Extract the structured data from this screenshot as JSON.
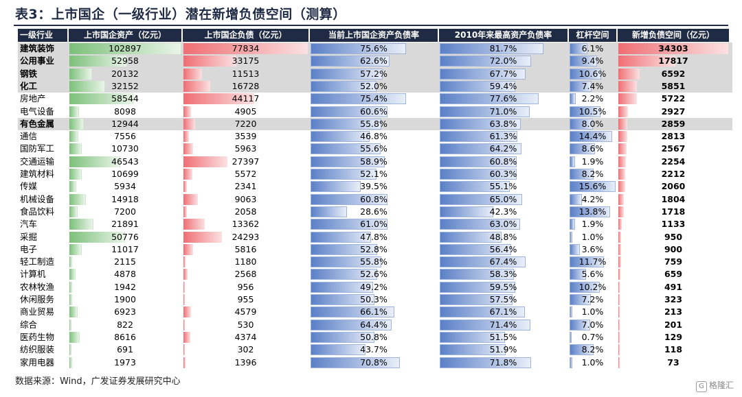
{
  "title": "表3：上市国企（一级行业）潜在新增负债空间（测算）",
  "source": "数据来源：Wind，广发证券发展研究中心",
  "logo_text": "格隆汇",
  "colors": {
    "header_bg": "#1f2a44",
    "highlight_row": "#d9d9d9",
    "green": "#7cc07a",
    "red": "#ef6e73",
    "blue": "#5b80c7"
  },
  "chart_data": {
    "type": "table",
    "columns": [
      "一级行业",
      "上市国企资产（亿元）",
      "上市国企负债（亿元）",
      "当前上市国企资产负债率",
      "2010年来最高资产负债率",
      "杠杆空间",
      "新增负债空间（亿元）"
    ],
    "rows": [
      {
        "industry": "建筑装饰",
        "assets": "102897",
        "liabilities": "77834",
        "current_ratio": "75.6%",
        "max_ratio": "81.7%",
        "leverage_space": "6.1%",
        "new_debt": "34303",
        "highlight": true
      },
      {
        "industry": "公用事业",
        "assets": "52958",
        "liabilities": "33175",
        "current_ratio": "62.6%",
        "max_ratio": "72.0%",
        "leverage_space": "9.4%",
        "new_debt": "17817",
        "highlight": true
      },
      {
        "industry": "钢铁",
        "assets": "20132",
        "liabilities": "11513",
        "current_ratio": "57.2%",
        "max_ratio": "67.7%",
        "leverage_space": "10.6%",
        "new_debt": "6592",
        "highlight": true
      },
      {
        "industry": "化工",
        "assets": "32152",
        "liabilities": "16728",
        "current_ratio": "52.0%",
        "max_ratio": "59.4%",
        "leverage_space": "7.4%",
        "new_debt": "5851",
        "highlight": true
      },
      {
        "industry": "房地产",
        "assets": "58544",
        "liabilities": "44117",
        "current_ratio": "75.4%",
        "max_ratio": "77.6%",
        "leverage_space": "2.2%",
        "new_debt": "5722",
        "highlight": false
      },
      {
        "industry": "电气设备",
        "assets": "8098",
        "liabilities": "4905",
        "current_ratio": "60.6%",
        "max_ratio": "71.0%",
        "leverage_space": "10.5%",
        "new_debt": "2927",
        "highlight": false
      },
      {
        "industry": "有色金属",
        "assets": "12944",
        "liabilities": "7220",
        "current_ratio": "55.8%",
        "max_ratio": "63.8%",
        "leverage_space": "8.0%",
        "new_debt": "2859",
        "highlight": true
      },
      {
        "industry": "通信",
        "assets": "7556",
        "liabilities": "3539",
        "current_ratio": "46.8%",
        "max_ratio": "61.3%",
        "leverage_space": "14.4%",
        "new_debt": "2813",
        "highlight": false
      },
      {
        "industry": "国防军工",
        "assets": "10730",
        "liabilities": "5963",
        "current_ratio": "55.6%",
        "max_ratio": "64.2%",
        "leverage_space": "8.6%",
        "new_debt": "2567",
        "highlight": false
      },
      {
        "industry": "交通运输",
        "assets": "46543",
        "liabilities": "27397",
        "current_ratio": "58.9%",
        "max_ratio": "60.8%",
        "leverage_space": "1.9%",
        "new_debt": "2254",
        "highlight": false
      },
      {
        "industry": "建筑材料",
        "assets": "10699",
        "liabilities": "5572",
        "current_ratio": "52.1%",
        "max_ratio": "60.3%",
        "leverage_space": "8.2%",
        "new_debt": "2212",
        "highlight": false
      },
      {
        "industry": "传媒",
        "assets": "5934",
        "liabilities": "2341",
        "current_ratio": "39.5%",
        "max_ratio": "55.1%",
        "leverage_space": "15.6%",
        "new_debt": "2060",
        "highlight": false
      },
      {
        "industry": "机械设备",
        "assets": "14918",
        "liabilities": "9063",
        "current_ratio": "60.8%",
        "max_ratio": "65.0%",
        "leverage_space": "4.2%",
        "new_debt": "1804",
        "highlight": false
      },
      {
        "industry": "食品饮料",
        "assets": "7200",
        "liabilities": "2058",
        "current_ratio": "28.6%",
        "max_ratio": "42.3%",
        "leverage_space": "13.8%",
        "new_debt": "1718",
        "highlight": false
      },
      {
        "industry": "汽车",
        "assets": "21891",
        "liabilities": "13362",
        "current_ratio": "61.0%",
        "max_ratio": "63.0%",
        "leverage_space": "1.9%",
        "new_debt": "1133",
        "highlight": false
      },
      {
        "industry": "采掘",
        "assets": "50776",
        "liabilities": "24293",
        "current_ratio": "47.8%",
        "max_ratio": "48.8%",
        "leverage_space": "1.0%",
        "new_debt": "950",
        "highlight": false
      },
      {
        "industry": "电子",
        "assets": "11017",
        "liabilities": "5816",
        "current_ratio": "52.8%",
        "max_ratio": "56.4%",
        "leverage_space": "3.6%",
        "new_debt": "900",
        "highlight": false
      },
      {
        "industry": "轻工制造",
        "assets": "2115",
        "liabilities": "1180",
        "current_ratio": "55.8%",
        "max_ratio": "67.4%",
        "leverage_space": "11.7%",
        "new_debt": "759",
        "highlight": false
      },
      {
        "industry": "计算机",
        "assets": "4878",
        "liabilities": "2568",
        "current_ratio": "52.6%",
        "max_ratio": "58.3%",
        "leverage_space": "5.6%",
        "new_debt": "659",
        "highlight": false
      },
      {
        "industry": "农林牧渔",
        "assets": "1942",
        "liabilities": "956",
        "current_ratio": "49.2%",
        "max_ratio": "59.5%",
        "leverage_space": "10.2%",
        "new_debt": "491",
        "highlight": false
      },
      {
        "industry": "休闲服务",
        "assets": "1900",
        "liabilities": "955",
        "current_ratio": "50.3%",
        "max_ratio": "57.5%",
        "leverage_space": "7.2%",
        "new_debt": "323",
        "highlight": false
      },
      {
        "industry": "商业贸易",
        "assets": "6923",
        "liabilities": "4579",
        "current_ratio": "66.1%",
        "max_ratio": "67.1%",
        "leverage_space": "1.0%",
        "new_debt": "213",
        "highlight": false
      },
      {
        "industry": "综合",
        "assets": "822",
        "liabilities": "530",
        "current_ratio": "64.4%",
        "max_ratio": "71.4%",
        "leverage_space": "7.0%",
        "new_debt": "201",
        "highlight": false
      },
      {
        "industry": "医药生物",
        "assets": "8616",
        "liabilities": "4374",
        "current_ratio": "50.8%",
        "max_ratio": "51.5%",
        "leverage_space": "0.7%",
        "new_debt": "129",
        "highlight": false
      },
      {
        "industry": "纺织服装",
        "assets": "691",
        "liabilities": "302",
        "current_ratio": "43.7%",
        "max_ratio": "51.9%",
        "leverage_space": "8.2%",
        "new_debt": "118",
        "highlight": false
      },
      {
        "industry": "家用电器",
        "assets": "1973",
        "liabilities": "1396",
        "current_ratio": "70.8%",
        "max_ratio": "71.8%",
        "leverage_space": "1.0%",
        "new_debt": "73",
        "highlight": false
      }
    ]
  }
}
